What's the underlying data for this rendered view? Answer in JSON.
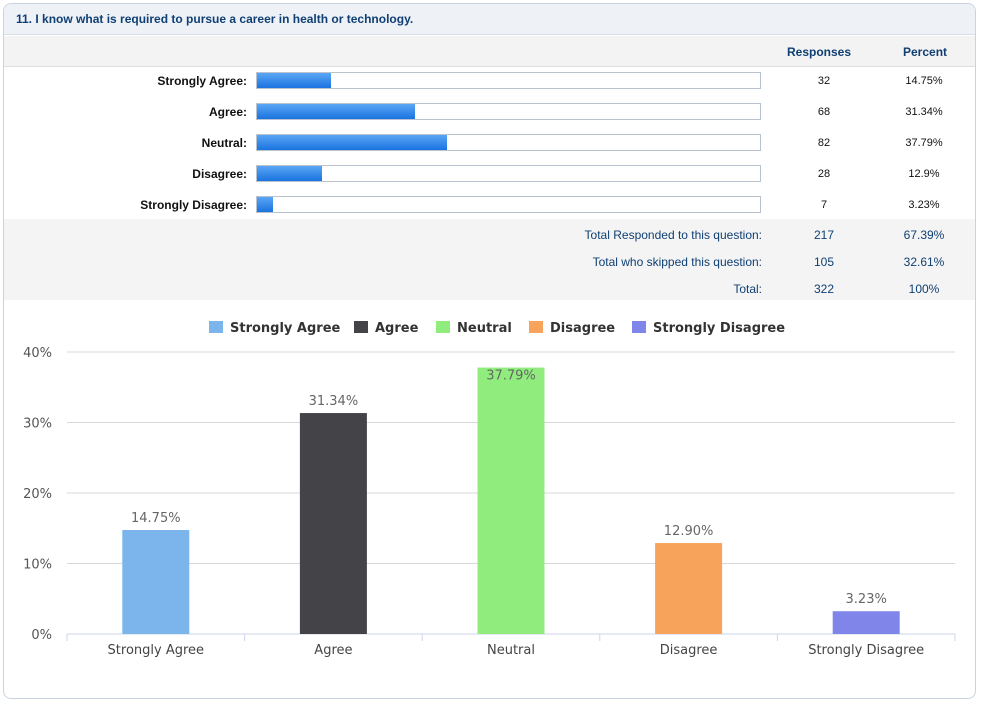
{
  "question": {
    "title": "11. I know what is required to pursue a career in health or technology."
  },
  "table": {
    "headers": {
      "responses": "Responses",
      "percent": "Percent"
    },
    "rows": [
      {
        "label": "Strongly Agree:",
        "count": "32",
        "percent": "14.75%",
        "share": 0.1475
      },
      {
        "label": "Agree:",
        "count": "68",
        "percent": "31.34%",
        "share": 0.3134
      },
      {
        "label": "Neutral:",
        "count": "82",
        "percent": "37.79%",
        "share": 0.3779
      },
      {
        "label": "Disagree:",
        "count": "28",
        "percent": "12.9%",
        "share": 0.129
      },
      {
        "label": "Strongly Disagree:",
        "count": "7",
        "percent": "3.23%",
        "share": 0.0323
      }
    ],
    "totals": [
      {
        "label": "Total Responded to this question:",
        "count": "217",
        "percent": "67.39%"
      },
      {
        "label": "Total who skipped this question:",
        "count": "105",
        "percent": "32.61%"
      },
      {
        "label": "Total:",
        "count": "322",
        "percent": "100%"
      }
    ],
    "bar_color": "#2b84ea"
  },
  "chart_data": {
    "type": "bar",
    "title": "",
    "xlabel": "",
    "ylabel": "",
    "categories": [
      "Strongly Agree",
      "Agree",
      "Neutral",
      "Disagree",
      "Strongly Disagree"
    ],
    "values": [
      14.75,
      31.34,
      37.79,
      12.9,
      3.23
    ],
    "value_labels": [
      "14.75%",
      "31.34%",
      "37.79%",
      "12.90%",
      "3.23%"
    ],
    "colors": [
      "#7cb5ec",
      "#434348",
      "#90ed7d",
      "#f7a35c",
      "#8085e9"
    ],
    "ylim": [
      0,
      40
    ],
    "yticks": [
      "0%",
      "10%",
      "20%",
      "30%",
      "40%"
    ],
    "ytick_values": [
      0,
      10,
      20,
      30,
      40
    ],
    "legend": [
      "Strongly Agree",
      "Agree",
      "Neutral",
      "Disagree",
      "Strongly Disagree"
    ],
    "legend_position": "top-center",
    "grid": true
  }
}
